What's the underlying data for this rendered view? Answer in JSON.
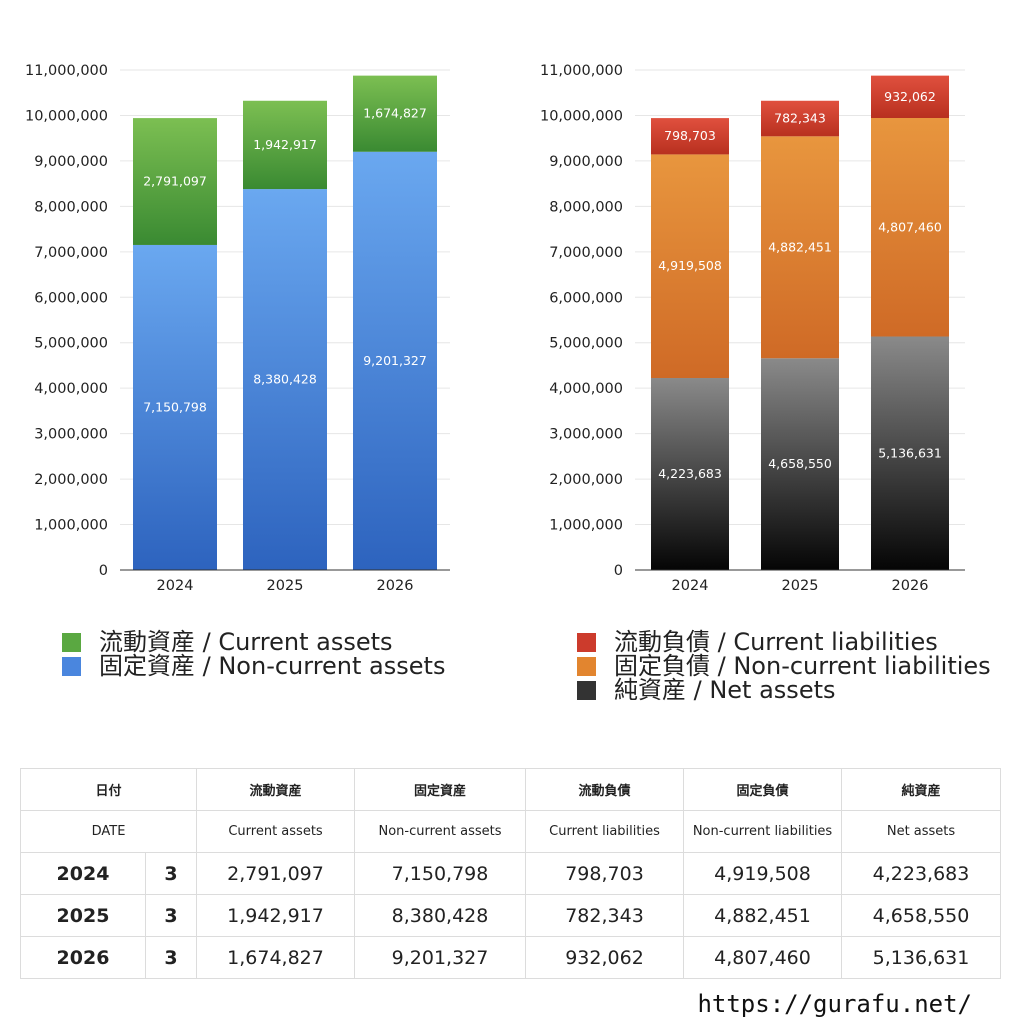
{
  "chart_data": [
    {
      "type": "bar",
      "stacked": true,
      "categories": [
        "2024",
        "2025",
        "2026"
      ],
      "ylim": [
        0,
        11000000
      ],
      "yticks": [
        0,
        1000000,
        2000000,
        3000000,
        4000000,
        5000000,
        6000000,
        7000000,
        8000000,
        9000000,
        10000000,
        11000000
      ],
      "ytick_labels": [
        "0",
        "1,000,000",
        "2,000,000",
        "3,000,000",
        "4,000,000",
        "5,000,000",
        "6,000,000",
        "7,000,000",
        "8,000,000",
        "9,000,000",
        "10,000,000",
        "11,000,000"
      ],
      "grid": true,
      "legend_position": "bottom",
      "series": [
        {
          "name": "固定資産 / Non-current assets",
          "values": [
            7150798,
            8380428,
            9201327
          ],
          "labels": [
            "7,150,798",
            "8,380,428",
            "9,201,327"
          ],
          "color_top": "#6aa8f0",
          "color_bottom": "#2d63be"
        },
        {
          "name": "流動資産 / Current assets",
          "values": [
            2791097,
            1942917,
            1674827
          ],
          "labels": [
            "2,791,097",
            "1,942,917",
            "1,674,827"
          ],
          "color_top": "#7cbf52",
          "color_bottom": "#3a8a32"
        }
      ]
    },
    {
      "type": "bar",
      "stacked": true,
      "categories": [
        "2024",
        "2025",
        "2026"
      ],
      "ylim": [
        0,
        11000000
      ],
      "yticks": [
        0,
        1000000,
        2000000,
        3000000,
        4000000,
        5000000,
        6000000,
        7000000,
        8000000,
        9000000,
        10000000,
        11000000
      ],
      "ytick_labels": [
        "0",
        "1,000,000",
        "2,000,000",
        "3,000,000",
        "4,000,000",
        "5,000,000",
        "6,000,000",
        "7,000,000",
        "8,000,000",
        "9,000,000",
        "10,000,000",
        "11,000,000"
      ],
      "grid": true,
      "legend_position": "bottom",
      "series": [
        {
          "name": "純資産 / Net assets",
          "values": [
            4223683,
            4658550,
            5136631
          ],
          "labels": [
            "4,223,683",
            "4,658,550",
            "5,136,631"
          ],
          "color_top": "#8a8a8a",
          "color_bottom": "#050505"
        },
        {
          "name": "固定負債 / Non-current liabilities",
          "values": [
            4919508,
            4882451,
            4807460
          ],
          "labels": [
            "4,919,508",
            "4,882,451",
            "4,807,460"
          ],
          "color_top": "#e8963e",
          "color_bottom": "#cf6a26"
        },
        {
          "name": "流動負債 / Current liabilities",
          "values": [
            798703,
            782343,
            932062
          ],
          "labels": [
            "798,703",
            "782,343",
            "932,062"
          ],
          "color_top": "#e0503e",
          "color_bottom": "#b8301f"
        }
      ]
    }
  ],
  "legend_left": [
    {
      "label": "流動資産 / Current assets",
      "color": "#5aa841"
    },
    {
      "label": "固定資産 / Non-current assets",
      "color": "#4a86de"
    }
  ],
  "legend_right": [
    {
      "label": "流動負債 / Current liabilities",
      "color": "#cc3b2c"
    },
    {
      "label": "固定負債 / Non-current liabilities",
      "color": "#e2852f"
    },
    {
      "label": "純資産 / Net assets",
      "color": "#333333"
    }
  ],
  "table": {
    "header_ja": [
      "日付",
      "流動資産",
      "固定資産",
      "流動負債",
      "固定負債",
      "純資産"
    ],
    "header_en": [
      "DATE",
      "Current assets",
      "Non-current assets",
      "Current liabilities",
      "Non-current liabilities",
      "Net assets"
    ],
    "rows": [
      {
        "year": "2024",
        "month": "3",
        "current_assets": "2,791,097",
        "noncurrent_assets": "7,150,798",
        "current_liabilities": "798,703",
        "noncurrent_liabilities": "4,919,508",
        "net_assets": "4,223,683"
      },
      {
        "year": "2025",
        "month": "3",
        "current_assets": "1,942,917",
        "noncurrent_assets": "8,380,428",
        "current_liabilities": "782,343",
        "noncurrent_liabilities": "4,882,451",
        "net_assets": "4,658,550"
      },
      {
        "year": "2026",
        "month": "3",
        "current_assets": "1,674,827",
        "noncurrent_assets": "9,201,327",
        "current_liabilities": "932,062",
        "noncurrent_liabilities": "4,807,460",
        "net_assets": "5,136,631"
      }
    ]
  },
  "site_url": "https://gurafu.net/"
}
